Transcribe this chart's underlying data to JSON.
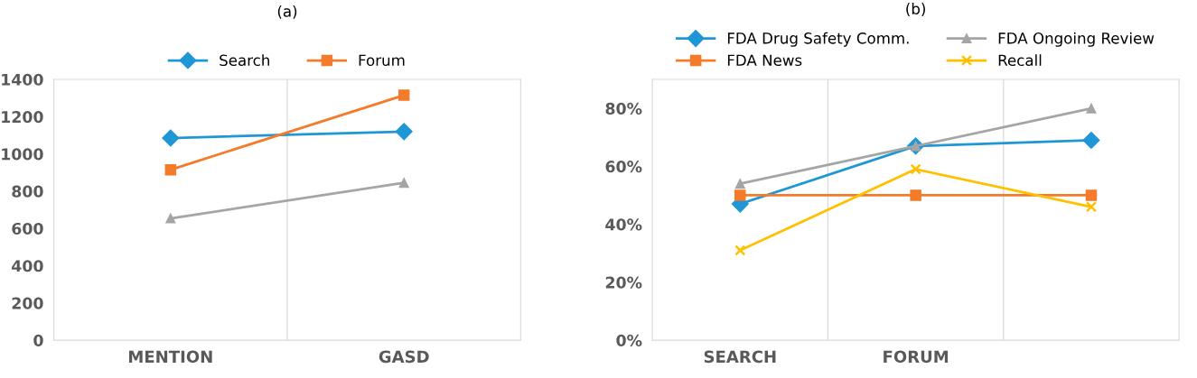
{
  "chart_data": [
    {
      "type": "line",
      "title": "(a)",
      "categories": [
        "MENTION",
        "GASD"
      ],
      "ylim": [
        0,
        1400
      ],
      "yticks": [
        0,
        200,
        400,
        600,
        800,
        1000,
        1200,
        1400
      ],
      "grid": "x",
      "legend": "top",
      "series": [
        {
          "name": "Search",
          "color": "#1f96d6",
          "marker": "diamond",
          "values": [
            1085,
            1120
          ]
        },
        {
          "name": "Forum",
          "color": "#f47b2a",
          "marker": "square",
          "values": [
            915,
            1315
          ]
        },
        {
          "color": "#a5a5a5",
          "marker": "triangle",
          "values": [
            654,
            845
          ]
        }
      ]
    },
    {
      "type": "line",
      "title": "(b)",
      "categories": [
        "SEARCH",
        "FORUM",
        null
      ],
      "ylim": [
        0,
        90
      ],
      "yticks": [
        {
          "value": 0,
          "label": "0%"
        },
        {
          "value": 20,
          "label": "20%"
        },
        {
          "value": 40,
          "label": "40%"
        },
        {
          "value": 60,
          "label": "60%"
        },
        {
          "value": 80,
          "label": "80%"
        }
      ],
      "grid": "x",
      "legend": "top",
      "series": [
        {
          "name": "FDA Drug Safety Comm.",
          "color": "#1f96d6",
          "marker": "diamond",
          "values": [
            47,
            67,
            69
          ]
        },
        {
          "name": "FDA News",
          "color": "#f47b2a",
          "marker": "square",
          "values": [
            50,
            50,
            50
          ]
        },
        {
          "name": "FDA Ongoing Review",
          "color": "#a5a5a5",
          "marker": "triangle",
          "values": [
            54,
            67,
            80
          ]
        },
        {
          "name": "Recall",
          "color": "#ffc000",
          "marker": "cross",
          "values": [
            31,
            59,
            46
          ]
        }
      ]
    }
  ]
}
